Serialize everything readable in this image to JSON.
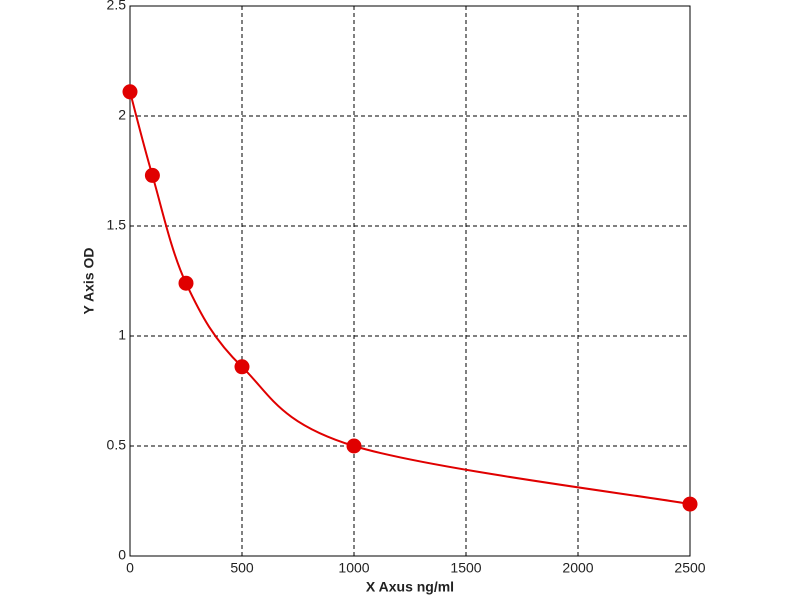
{
  "chart_data": {
    "type": "scatter",
    "xlabel": "X Axus ng/ml",
    "ylabel": "Y Axis OD",
    "x": [
      0,
      100,
      250,
      500,
      1000,
      2500
    ],
    "series": [
      {
        "color": "#e00000",
        "values": [
          2.11,
          1.73,
          1.24,
          0.86,
          0.5,
          0.236
        ]
      }
    ],
    "curve": "smooth",
    "xlim": [
      0,
      2500
    ],
    "xticks": [
      0,
      500,
      1000,
      1500,
      2000,
      2500
    ],
    "ylim": [
      0,
      2.5
    ],
    "yticks": [
      0,
      0.5,
      1,
      1.5,
      2,
      2.5
    ],
    "grid": true
  }
}
